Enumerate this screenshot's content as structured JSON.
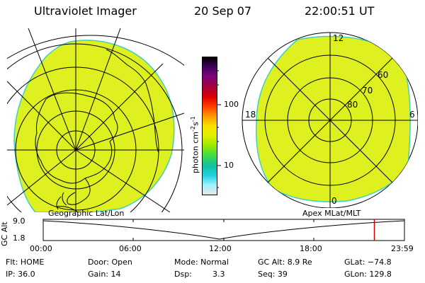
{
  "header": {
    "instrument": "Ultraviolet Imager",
    "date": "20 Sep 07",
    "time": "22:00:51 UT"
  },
  "panels": {
    "left_label": "Geographic Lat/Lon",
    "right_label": "Apex MLat/MLT"
  },
  "colorbar": {
    "unit_label": "photon cm",
    "unit_exp1": "-2",
    "unit_mid": "s",
    "unit_exp2": "-1",
    "ticks": [
      "100",
      "10"
    ],
    "scale": "log",
    "colors": [
      "#e8e8e8",
      "#9ff0ff",
      "#20d0e0",
      "#10c0a0",
      "#40e040",
      "#9fe800",
      "#e0f000",
      "#f8e000",
      "#ff9a00",
      "#ff4000",
      "#e00000",
      "#a00040",
      "#80007f",
      "#40005f",
      "#000000"
    ]
  },
  "right_map": {
    "mlt_labels": [
      "12",
      "18",
      "6",
      "0"
    ],
    "mlat_labels": [
      "60",
      "70",
      "80"
    ]
  },
  "timeline": {
    "yaxis_label": "GC Alt",
    "ytick_top": "9.0",
    "ytick_bottom": "1.8",
    "xticks": [
      "00:00",
      "06:00",
      "12:00",
      "18:00",
      "23:59"
    ],
    "marker_time": "22:00",
    "marker_color": "#d00000"
  },
  "info": {
    "flt": "Flt: HOME",
    "ip": "IP: 36.0",
    "door": "Door: Open",
    "gain": "Gain: 14",
    "mode": "Mode: Normal",
    "dsp_label": "Dsp:",
    "dsp_value": "3.3",
    "gcalt": "GC Alt: 8.9 Re",
    "seq": "Seq: 39",
    "glat": "GLat: −74.8",
    "glon": "GLon: 129.8"
  },
  "image_fill_color": "#dff020",
  "image_edge_color": "#3fd0c0"
}
